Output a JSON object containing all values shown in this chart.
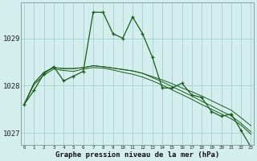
{
  "xlabel": "Graphe pression niveau de la mer (hPa)",
  "bg_color": "#d4eeee",
  "grid_color": "#aad4d4",
  "line_color": "#1a5c1a",
  "hours": [
    0,
    1,
    2,
    3,
    4,
    5,
    6,
    7,
    8,
    9,
    10,
    11,
    12,
    13,
    14,
    15,
    16,
    17,
    18,
    19,
    20,
    21,
    22,
    23
  ],
  "series1": [
    1027.6,
    1027.9,
    1028.25,
    1028.4,
    1028.1,
    1028.2,
    1028.3,
    1029.55,
    1029.55,
    1029.1,
    1029.0,
    1029.45,
    1029.1,
    1028.6,
    1027.95,
    1027.95,
    1028.05,
    1027.8,
    1027.75,
    1027.45,
    1027.35,
    1027.4,
    1027.05,
    1026.7
  ],
  "series2": [
    1027.6,
    1028.05,
    1028.28,
    1028.38,
    1028.36,
    1028.36,
    1028.38,
    1028.42,
    1028.4,
    1028.37,
    1028.34,
    1028.31,
    1028.26,
    1028.19,
    1028.12,
    1028.04,
    1027.95,
    1027.87,
    1027.78,
    1027.68,
    1027.58,
    1027.48,
    1027.32,
    1027.15
  ],
  "series3": [
    1027.6,
    1028.05,
    1028.28,
    1028.38,
    1028.36,
    1028.36,
    1028.38,
    1028.42,
    1028.4,
    1028.37,
    1028.34,
    1028.31,
    1028.26,
    1028.17,
    1028.08,
    1027.98,
    1027.88,
    1027.78,
    1027.67,
    1027.57,
    1027.46,
    1027.36,
    1027.2,
    1027.02
  ],
  "series4": [
    1027.6,
    1028.02,
    1028.22,
    1028.35,
    1028.32,
    1028.3,
    1028.35,
    1028.38,
    1028.37,
    1028.33,
    1028.28,
    1028.24,
    1028.18,
    1028.1,
    1028.01,
    1027.91,
    1027.81,
    1027.71,
    1027.6,
    1027.5,
    1027.4,
    1027.3,
    1027.16,
    1026.97
  ],
  "ylim": [
    1026.75,
    1029.75
  ],
  "yticks": [
    1027,
    1028,
    1029
  ],
  "xlim": [
    -0.3,
    23.3
  ]
}
